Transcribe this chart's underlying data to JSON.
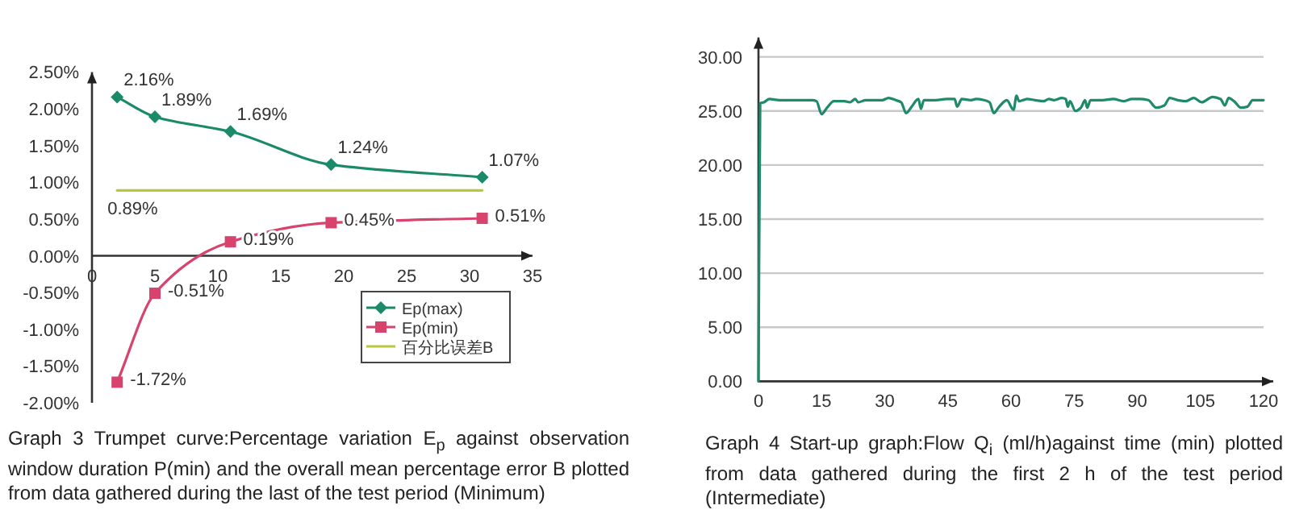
{
  "chart_data": [
    {
      "type": "line",
      "annotations": [
        "Graph 3 Trumpet curve:Percentage variation E$_{p}$ against observation window duration P(min) and the overall mean percentage error B plotted from data gathered during the last of the test period (Minimum)"
      ],
      "x": [
        2,
        5,
        11,
        19,
        31
      ],
      "series": [
        {
          "name": "Ep(max)",
          "color": "#1b8a68",
          "marker": "diamond",
          "values": [
            2.16,
            1.89,
            1.69,
            1.24,
            1.07
          ],
          "value_labels": [
            "2.16%",
            "1.89%",
            "1.69%",
            "1.24%",
            "1.07%"
          ]
        },
        {
          "name": "Ep(min)",
          "color": "#d8436e",
          "marker": "square",
          "values": [
            -1.72,
            -0.51,
            0.19,
            0.45,
            0.51
          ],
          "value_labels": [
            "-1.72%",
            "-0.51%",
            "0.19%",
            "0.45%",
            "0.51%"
          ]
        },
        {
          "name": "百分比误差B",
          "color": "#b8c83c",
          "marker": "none",
          "x": [
            2,
            31
          ],
          "values": [
            0.89,
            0.89
          ],
          "value_labels": [
            "0.89%",
            null
          ]
        }
      ],
      "xlim": [
        0,
        35
      ],
      "xticks": [
        0,
        5,
        10,
        15,
        20,
        25,
        30,
        35
      ],
      "ylim": [
        -2,
        2.5
      ],
      "yticks": [
        {
          "value": -2,
          "label": "-2.00%"
        },
        {
          "value": -1.5,
          "label": "-1.50%"
        },
        {
          "value": -1,
          "label": "-1.00%"
        },
        {
          "value": -0.5,
          "label": "-0.50%"
        },
        {
          "value": 0,
          "label": "0.00%"
        },
        {
          "value": 0.5,
          "label": "0.50%"
        },
        {
          "value": 1,
          "label": "1.00%"
        },
        {
          "value": 1.5,
          "label": "1.50%"
        },
        {
          "value": 2,
          "label": "2.00%"
        },
        {
          "value": 2.5,
          "label": "2.50%"
        }
      ],
      "grid": false,
      "legend": "bottom right"
    },
    {
      "type": "line",
      "annotations": [
        "Graph 4 Start-up graph:Flow Q$_{i}$ (ml/h)against time (min) plotted from data gathered during the first 2 h of the test period (Intermediate)"
      ],
      "marker": "none",
      "grid": "y",
      "legend": false,
      "series": [
        {
          "color": "#1e8a6a",
          "x": [
            0,
            0.4,
            1.3,
            2.6,
            5,
            8.8,
            12.8,
            13.8,
            15,
            16.3,
            17.9,
            20.4,
            21.7,
            23,
            23.7,
            25.5,
            29.4,
            30.9,
            32.6,
            33.9,
            35.1,
            36.4,
            38,
            38.6,
            39.3,
            42.1,
            44.7,
            46.6,
            47.2,
            48.3,
            50.5,
            51.7,
            53.6,
            54.9,
            55.9,
            57.2,
            59,
            60.6,
            61.3,
            61.9,
            63.8,
            65.7,
            67.7,
            69,
            70.2,
            72.1,
            73,
            73.5,
            74,
            75.3,
            76.6,
            77.6,
            78.1,
            78.9,
            81.7,
            84.3,
            86.8,
            88.7,
            90.6,
            92.6,
            94.5,
            96.4,
            97.7,
            99.6,
            101.5,
            103.4,
            105.3,
            107.9,
            109.8,
            110.8,
            111.7,
            113,
            114.6,
            116.2,
            117.4,
            120
          ],
          "values": [
            0,
            25.7,
            25.8,
            26.1,
            26,
            26,
            26,
            25.9,
            24.7,
            25.3,
            25.9,
            25.9,
            25.8,
            26.1,
            25.8,
            26,
            26,
            26.2,
            26,
            25.8,
            24.8,
            25.4,
            26.1,
            25.2,
            26,
            26,
            26.1,
            26.1,
            25.4,
            26.1,
            26,
            26.1,
            26,
            25.8,
            24.8,
            25.4,
            26,
            25.1,
            26.4,
            25.9,
            26.1,
            26,
            25.9,
            26.1,
            26,
            26.2,
            26.1,
            25.4,
            25.9,
            25,
            25.3,
            26,
            25.3,
            26,
            26,
            26.1,
            25.9,
            26.1,
            26.1,
            26,
            25.3,
            25.5,
            26.2,
            26,
            25.9,
            26.2,
            25.8,
            26.3,
            26.1,
            25.5,
            26.2,
            25.9,
            25.3,
            25.4,
            26,
            26
          ]
        }
      ],
      "xlim": [
        0,
        120
      ],
      "xticks": [
        0,
        15,
        30,
        45,
        60,
        75,
        90,
        105,
        120
      ],
      "ylim": [
        0,
        30
      ],
      "yticks": [
        {
          "value": 0,
          "label": "0.00"
        },
        {
          "value": 5,
          "label": "5.00"
        },
        {
          "value": 10,
          "label": "10.00"
        },
        {
          "value": 15,
          "label": "15.00"
        },
        {
          "value": 20,
          "label": "20.00"
        },
        {
          "value": 25,
          "label": "25.00"
        },
        {
          "value": 30,
          "label": "30.00"
        }
      ]
    }
  ]
}
